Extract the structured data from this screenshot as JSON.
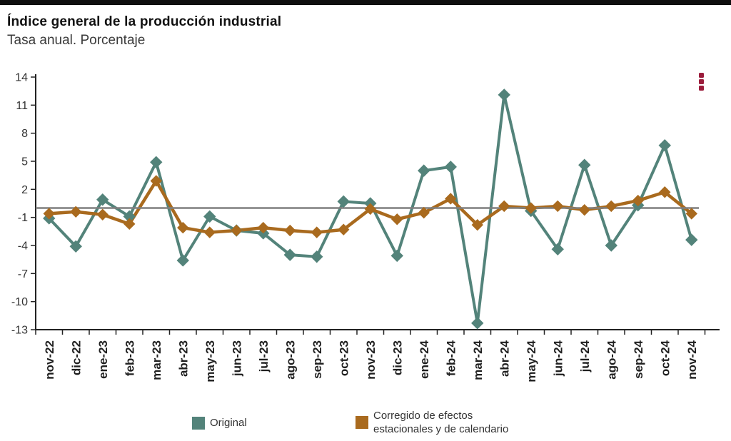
{
  "header": {
    "title": "Índice general de la producción industrial",
    "subtitle": "Tasa anual. Porcentaje"
  },
  "toolbar": {
    "context_menu_icon": "vertical-ellipsis-icon",
    "context_menu_color": "#9b1c3b"
  },
  "legend": {
    "items": [
      {
        "label": "Original",
        "color": "#53837a"
      },
      {
        "label": "Corregido de efectos estacionales y de calendario",
        "label_line1": "Corregido de efectos",
        "label_line2": "estacionales y de calendario",
        "color": "#a96a1e"
      }
    ]
  },
  "chart_data": {
    "type": "line",
    "title": "Índice general de la producción industrial",
    "subtitle": "Tasa anual. Porcentaje",
    "categories": [
      "nov-22",
      "dic-22",
      "ene-23",
      "feb-23",
      "mar-23",
      "abr-23",
      "may-23",
      "jun-23",
      "jul-23",
      "ago-23",
      "sep-23",
      "oct-23",
      "nov-23",
      "dic-23",
      "ene-24",
      "feb-24",
      "mar-24",
      "abr-24",
      "may-24",
      "jun-24",
      "jul-24",
      "ago-24",
      "sep-24",
      "oct-24",
      "nov-24"
    ],
    "series": [
      {
        "name": "Original",
        "color": "#53837a",
        "marker": "diamond",
        "values": [
          -1.1,
          -4.1,
          0.9,
          -0.9,
          4.9,
          -5.6,
          -0.9,
          -2.4,
          -2.7,
          -5.0,
          -5.2,
          0.7,
          0.5,
          -5.1,
          4.0,
          4.4,
          -12.3,
          12.1,
          -0.3,
          -4.4,
          4.6,
          -4.0,
          0.3,
          6.7,
          -3.4
        ]
      },
      {
        "name": "Corregido de efectos estacionales y de calendario",
        "color": "#a96a1e",
        "marker": "diamond",
        "values": [
          -0.6,
          -0.4,
          -0.7,
          -1.7,
          2.9,
          -2.1,
          -2.6,
          -2.4,
          -2.1,
          -2.4,
          -2.6,
          -2.3,
          -0.1,
          -1.2,
          -0.5,
          1.0,
          -1.8,
          0.2,
          0.0,
          0.2,
          -0.2,
          0.2,
          0.8,
          1.7,
          -0.6
        ]
      }
    ],
    "xlabel": "",
    "ylabel": "",
    "ylim": [
      -13,
      14
    ],
    "yticks": [
      14,
      11,
      8,
      5,
      2,
      -1,
      -4,
      -7,
      -10,
      -13
    ],
    "zero_line": 0,
    "zero_line_color": "#7f7f7f",
    "axis_color": "#222222",
    "grid": false,
    "legend_position": "bottom"
  }
}
